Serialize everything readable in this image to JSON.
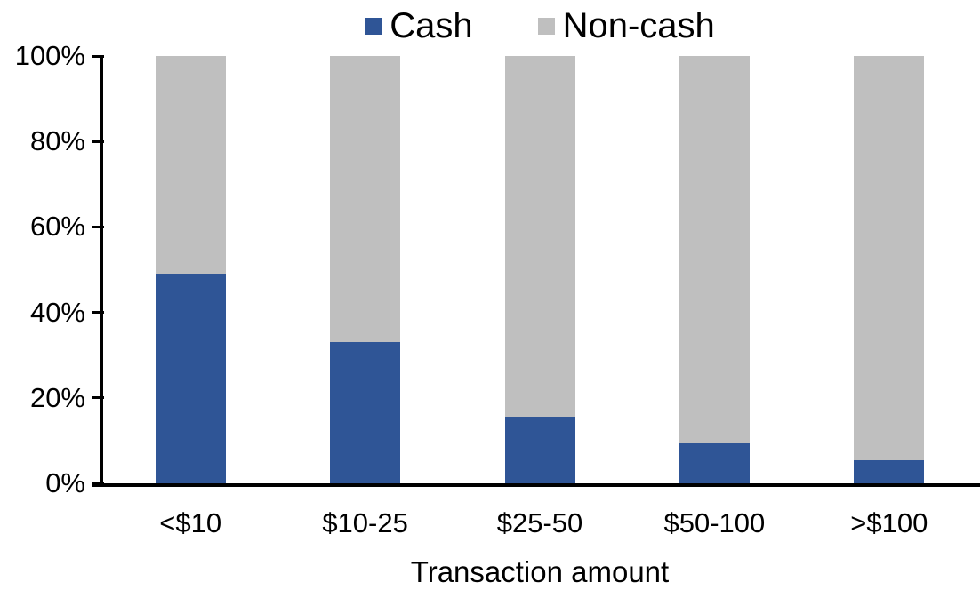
{
  "chart_data": {
    "type": "bar",
    "stacked": true,
    "title": "",
    "xlabel": "Transaction amount",
    "ylabel": "",
    "categories": [
      "<$10",
      "$10-25",
      "$25-50",
      "$50-100",
      ">$100"
    ],
    "series": [
      {
        "name": "Cash",
        "color": "#2F5596",
        "values": [
          49,
          33,
          15.5,
          9.5,
          5.5
        ]
      },
      {
        "name": "Non-cash",
        "color": "#BFBFBF",
        "values": [
          51,
          67,
          84.5,
          90.5,
          94.5
        ]
      }
    ],
    "ylim": [
      0,
      100
    ],
    "y_tick_step": 20,
    "y_ticks": [
      "0%",
      "20%",
      "40%",
      "60%",
      "80%",
      "100%"
    ],
    "legend_position": "top",
    "grid": false,
    "axis_color": "#000000",
    "background": "#FFFFFF"
  }
}
